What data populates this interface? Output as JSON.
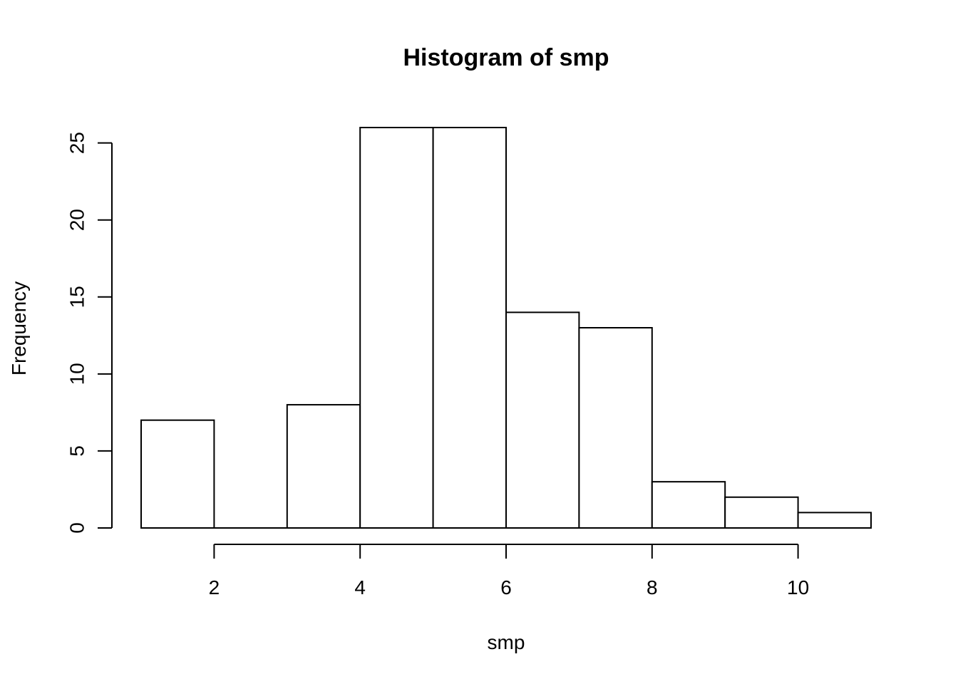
{
  "chart_data": {
    "type": "bar",
    "title": "Histogram of smp",
    "xlabel": "smp",
    "ylabel": "Frequency",
    "bins": [
      {
        "start": 1,
        "end": 2,
        "count": 7
      },
      {
        "start": 2,
        "end": 3,
        "count": 0
      },
      {
        "start": 3,
        "end": 4,
        "count": 8
      },
      {
        "start": 4,
        "end": 5,
        "count": 26
      },
      {
        "start": 5,
        "end": 6,
        "count": 26
      },
      {
        "start": 6,
        "end": 7,
        "count": 14
      },
      {
        "start": 7,
        "end": 8,
        "count": 13
      },
      {
        "start": 8,
        "end": 9,
        "count": 3
      },
      {
        "start": 9,
        "end": 10,
        "count": 2
      },
      {
        "start": 10,
        "end": 11,
        "count": 1
      }
    ],
    "x_ticks": [
      2,
      4,
      6,
      8,
      10
    ],
    "y_ticks": [
      0,
      5,
      10,
      15,
      20,
      25
    ],
    "xlim": [
      1,
      11
    ],
    "ylim": [
      0,
      26
    ],
    "grid": false,
    "colors": {
      "bar_fill": "#ffffff",
      "bar_stroke": "#000000"
    }
  }
}
